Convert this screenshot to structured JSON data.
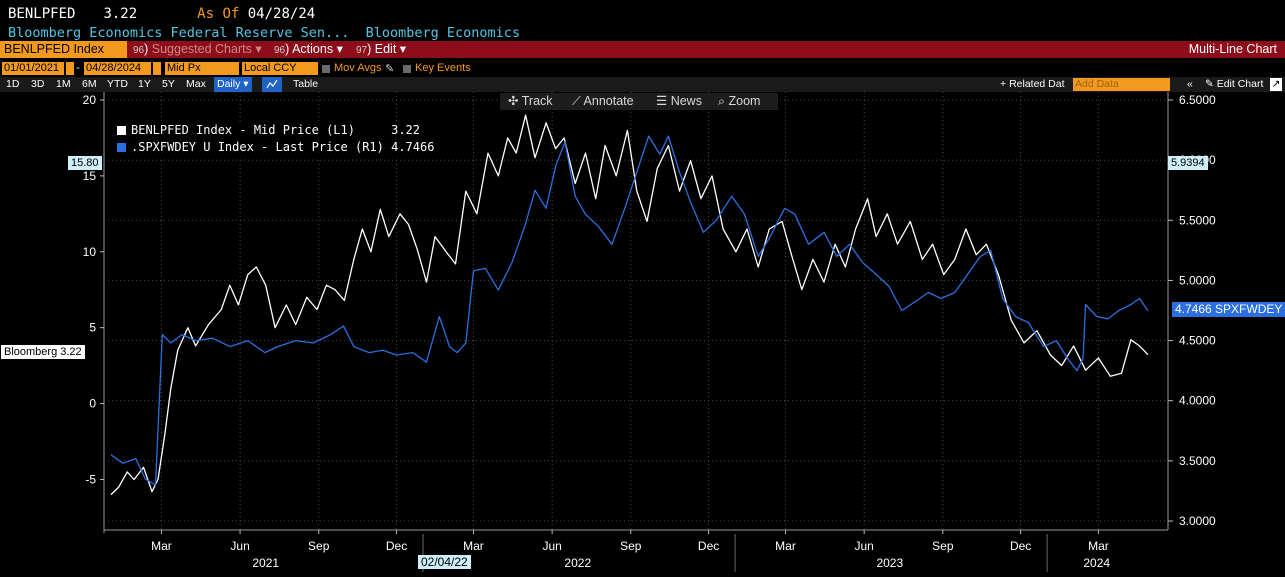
{
  "header": {
    "ticker": "BENLPFED",
    "value": "3.22",
    "as_of_label": "As Of",
    "as_of_date": "04/28/24",
    "description": "Bloomberg Economics Federal Reserve Sen...",
    "source": "Bloomberg Economics"
  },
  "menubar": {
    "security": "BENLPFED Index",
    "suggested_num": "96",
    "suggested": "Suggested Charts",
    "actions_num": "96",
    "actions": "Actions",
    "edit_num": "97",
    "edit": "Edit",
    "right_title": "Multi-Line Chart"
  },
  "range_bar": {
    "start_date": "01/01/2021",
    "end_date": "04/28/2024",
    "price_field": "Mid Px",
    "currency": "Local CCY",
    "mov_avgs": "Mov Avgs",
    "key_events": "Key Events"
  },
  "period_bar": {
    "periods": [
      "1D",
      "3D",
      "1M",
      "6M",
      "YTD",
      "1Y",
      "5Y",
      "Max"
    ],
    "frequency": "Daily",
    "table": "Table",
    "related_data": "Related Dat",
    "add_data_placeholder": "Add Data",
    "edit_chart": "Edit Chart"
  },
  "chart_controls": {
    "track": "Track",
    "annotate": "Annotate",
    "news": "News",
    "zoom": "Zoom"
  },
  "tags": {
    "left_cursor": "15.80",
    "right_cursor": "5.9394",
    "bloomberg_last": "Bloomberg 3.22",
    "spx_last": "4.7466 SPXFWDEY",
    "x_cursor_date": "02/04/22"
  },
  "colors": {
    "series1": "#ffffff",
    "series2": "#2b6fe0",
    "header_accent": "#f39a1e",
    "menubar": "#8e0d1a",
    "grid": "#3a3a3a"
  },
  "chart_data": {
    "type": "line",
    "grid": true,
    "legend_position": "top-left",
    "x_range": [
      "2021-01-01",
      "2024-04-28"
    ],
    "x_month_ticks": [
      "Mar",
      "Jun",
      "Sep",
      "Dec",
      "Mar",
      "Jun",
      "Sep",
      "Dec",
      "Mar",
      "Jun",
      "Sep",
      "Dec",
      "Mar"
    ],
    "x_year_labels": [
      "2021",
      "2022",
      "2023",
      "2024"
    ],
    "y_left": {
      "range": [
        -8,
        20
      ],
      "ticks": [
        "20",
        "15",
        "10",
        "5",
        "0",
        "-5"
      ]
    },
    "y_right": {
      "range": [
        2.9,
        6.5
      ],
      "ticks": [
        "6.5000",
        "6.0000",
        "5.5000",
        "5.0000",
        "4.5000",
        "4.0000",
        "3.5000",
        "3.0000"
      ]
    },
    "series": [
      {
        "name": "BENLPFED Index - Mid Price (L1)",
        "last": "3.22",
        "axis": "left",
        "color": "#ffffff",
        "points": [
          [
            "2021-01-01",
            -6.0
          ],
          [
            "2021-01-10",
            -5.5
          ],
          [
            "2021-01-20",
            -4.5
          ],
          [
            "2021-01-28",
            -5.0
          ],
          [
            "2021-02-08",
            -4.2
          ],
          [
            "2021-02-18",
            -5.8
          ],
          [
            "2021-02-25",
            -5.0
          ],
          [
            "2021-03-05",
            -2.0
          ],
          [
            "2021-03-12",
            1.0
          ],
          [
            "2021-03-20",
            3.5
          ],
          [
            "2021-04-01",
            5.0
          ],
          [
            "2021-04-10",
            3.8
          ],
          [
            "2021-04-25",
            5.2
          ],
          [
            "2021-05-10",
            6.2
          ],
          [
            "2021-05-20",
            7.8
          ],
          [
            "2021-05-30",
            6.5
          ],
          [
            "2021-06-10",
            8.5
          ],
          [
            "2021-06-20",
            9.0
          ],
          [
            "2021-07-01",
            7.8
          ],
          [
            "2021-07-12",
            5.0
          ],
          [
            "2021-07-25",
            6.5
          ],
          [
            "2021-08-05",
            5.2
          ],
          [
            "2021-08-18",
            7.0
          ],
          [
            "2021-08-30",
            6.2
          ],
          [
            "2021-09-10",
            7.8
          ],
          [
            "2021-09-20",
            7.5
          ],
          [
            "2021-10-01",
            6.8
          ],
          [
            "2021-10-12",
            9.5
          ],
          [
            "2021-10-22",
            11.5
          ],
          [
            "2021-11-01",
            10.0
          ],
          [
            "2021-11-12",
            12.8
          ],
          [
            "2021-11-22",
            11.0
          ],
          [
            "2021-12-05",
            12.5
          ],
          [
            "2021-12-15",
            11.8
          ],
          [
            "2021-12-25",
            10.2
          ],
          [
            "2022-01-05",
            8.0
          ],
          [
            "2022-01-15",
            11.0
          ],
          [
            "2022-01-28",
            10.0
          ],
          [
            "2022-02-08",
            9.2
          ],
          [
            "2022-02-20",
            14.0
          ],
          [
            "2022-03-05",
            12.5
          ],
          [
            "2022-03-18",
            16.5
          ],
          [
            "2022-03-30",
            15.0
          ],
          [
            "2022-04-10",
            17.5
          ],
          [
            "2022-04-20",
            16.5
          ],
          [
            "2022-05-01",
            19.0
          ],
          [
            "2022-05-12",
            16.2
          ],
          [
            "2022-05-25",
            18.5
          ],
          [
            "2022-06-05",
            16.8
          ],
          [
            "2022-06-15",
            17.5
          ],
          [
            "2022-06-28",
            14.5
          ],
          [
            "2022-07-10",
            16.5
          ],
          [
            "2022-07-22",
            13.5
          ],
          [
            "2022-08-02",
            17.0
          ],
          [
            "2022-08-15",
            15.0
          ],
          [
            "2022-08-28",
            18.0
          ],
          [
            "2022-09-08",
            14.0
          ],
          [
            "2022-09-20",
            12.0
          ],
          [
            "2022-10-02",
            15.5
          ],
          [
            "2022-10-15",
            17.0
          ],
          [
            "2022-10-28",
            14.0
          ],
          [
            "2022-11-10",
            16.0
          ],
          [
            "2022-11-22",
            13.5
          ],
          [
            "2022-12-05",
            15.0
          ],
          [
            "2022-12-18",
            11.5
          ],
          [
            "2023-01-02",
            10.0
          ],
          [
            "2023-01-15",
            11.5
          ],
          [
            "2023-01-28",
            9.0
          ],
          [
            "2023-02-10",
            11.5
          ],
          [
            "2023-02-25",
            12.0
          ],
          [
            "2023-03-08",
            9.8
          ],
          [
            "2023-03-20",
            7.5
          ],
          [
            "2023-04-02",
            9.5
          ],
          [
            "2023-04-15",
            8.0
          ],
          [
            "2023-04-28",
            10.5
          ],
          [
            "2023-05-10",
            9.0
          ],
          [
            "2023-05-22",
            11.5
          ],
          [
            "2023-06-05",
            13.5
          ],
          [
            "2023-06-15",
            11.0
          ],
          [
            "2023-06-28",
            12.5
          ],
          [
            "2023-07-10",
            10.5
          ],
          [
            "2023-07-25",
            12.0
          ],
          [
            "2023-08-08",
            9.5
          ],
          [
            "2023-08-20",
            10.5
          ],
          [
            "2023-09-02",
            8.5
          ],
          [
            "2023-09-15",
            9.5
          ],
          [
            "2023-09-28",
            11.5
          ],
          [
            "2023-10-10",
            9.8
          ],
          [
            "2023-10-22",
            10.5
          ],
          [
            "2023-11-05",
            8.5
          ],
          [
            "2023-11-20",
            5.5
          ],
          [
            "2023-12-05",
            4.0
          ],
          [
            "2023-12-20",
            4.8
          ],
          [
            "2024-01-05",
            3.2
          ],
          [
            "2024-01-18",
            2.5
          ],
          [
            "2024-02-01",
            3.8
          ],
          [
            "2024-02-15",
            2.2
          ],
          [
            "2024-03-01",
            3.0
          ],
          [
            "2024-03-15",
            1.8
          ],
          [
            "2024-03-28",
            2.0
          ],
          [
            "2024-04-08",
            4.2
          ],
          [
            "2024-04-18",
            3.8
          ],
          [
            "2024-04-28",
            3.22
          ]
        ]
      },
      {
        "name": ".SPXFWDEY U Index - Last Price (R1)",
        "last": "4.7466",
        "axis": "right",
        "color": "#2b6fe0",
        "points": [
          [
            "2021-01-01",
            3.55
          ],
          [
            "2021-01-15",
            3.48
          ],
          [
            "2021-01-30",
            3.52
          ],
          [
            "2021-02-10",
            3.35
          ],
          [
            "2021-02-22",
            3.3
          ],
          [
            "2021-03-02",
            4.55
          ],
          [
            "2021-03-12",
            4.48
          ],
          [
            "2021-03-25",
            4.55
          ],
          [
            "2021-04-10",
            4.5
          ],
          [
            "2021-04-30",
            4.52
          ],
          [
            "2021-05-20",
            4.45
          ],
          [
            "2021-06-10",
            4.5
          ],
          [
            "2021-06-30",
            4.4
          ],
          [
            "2021-07-15",
            4.45
          ],
          [
            "2021-08-05",
            4.5
          ],
          [
            "2021-08-25",
            4.48
          ],
          [
            "2021-09-15",
            4.55
          ],
          [
            "2021-09-30",
            4.62
          ],
          [
            "2021-10-12",
            4.45
          ],
          [
            "2021-10-30",
            4.4
          ],
          [
            "2021-11-15",
            4.42
          ],
          [
            "2021-12-01",
            4.38
          ],
          [
            "2021-12-20",
            4.4
          ],
          [
            "2022-01-05",
            4.32
          ],
          [
            "2022-01-20",
            4.7
          ],
          [
            "2022-02-01",
            4.45
          ],
          [
            "2022-02-10",
            4.4
          ],
          [
            "2022-02-20",
            4.48
          ],
          [
            "2022-03-01",
            5.08
          ],
          [
            "2022-03-15",
            5.1
          ],
          [
            "2022-03-30",
            4.92
          ],
          [
            "2022-04-15",
            5.15
          ],
          [
            "2022-04-30",
            5.45
          ],
          [
            "2022-05-12",
            5.75
          ],
          [
            "2022-05-25",
            5.6
          ],
          [
            "2022-06-05",
            5.95
          ],
          [
            "2022-06-16",
            6.15
          ],
          [
            "2022-06-28",
            5.7
          ],
          [
            "2022-07-10",
            5.55
          ],
          [
            "2022-07-25",
            5.45
          ],
          [
            "2022-08-10",
            5.3
          ],
          [
            "2022-08-25",
            5.6
          ],
          [
            "2022-09-08",
            5.9
          ],
          [
            "2022-09-22",
            6.2
          ],
          [
            "2022-10-05",
            6.05
          ],
          [
            "2022-10-15",
            6.2
          ],
          [
            "2022-10-28",
            5.9
          ],
          [
            "2022-11-10",
            5.65
          ],
          [
            "2022-11-25",
            5.4
          ],
          [
            "2022-12-10",
            5.5
          ],
          [
            "2022-12-28",
            5.7
          ],
          [
            "2023-01-12",
            5.55
          ],
          [
            "2023-01-28",
            5.2
          ],
          [
            "2023-02-10",
            5.35
          ],
          [
            "2023-02-28",
            5.6
          ],
          [
            "2023-03-12",
            5.55
          ],
          [
            "2023-03-28",
            5.3
          ],
          [
            "2023-04-15",
            5.4
          ],
          [
            "2023-04-30",
            5.2
          ],
          [
            "2023-05-15",
            5.3
          ],
          [
            "2023-05-30",
            5.15
          ],
          [
            "2023-06-15",
            5.05
          ],
          [
            "2023-06-30",
            4.95
          ],
          [
            "2023-07-15",
            4.75
          ],
          [
            "2023-07-30",
            4.82
          ],
          [
            "2023-08-15",
            4.9
          ],
          [
            "2023-08-30",
            4.85
          ],
          [
            "2023-09-15",
            4.9
          ],
          [
            "2023-09-30",
            5.05
          ],
          [
            "2023-10-15",
            5.2
          ],
          [
            "2023-10-27",
            5.25
          ],
          [
            "2023-11-10",
            4.85
          ],
          [
            "2023-11-25",
            4.7
          ],
          [
            "2023-12-10",
            4.65
          ],
          [
            "2023-12-28",
            4.45
          ],
          [
            "2024-01-12",
            4.5
          ],
          [
            "2024-01-25",
            4.35
          ],
          [
            "2024-02-05",
            4.25
          ],
          [
            "2024-02-12",
            4.35
          ],
          [
            "2024-02-15",
            4.8
          ],
          [
            "2024-02-28",
            4.7
          ],
          [
            "2024-03-12",
            4.68
          ],
          [
            "2024-03-25",
            4.75
          ],
          [
            "2024-04-08",
            4.8
          ],
          [
            "2024-04-18",
            4.85
          ],
          [
            "2024-04-28",
            4.7466
          ]
        ]
      }
    ]
  }
}
